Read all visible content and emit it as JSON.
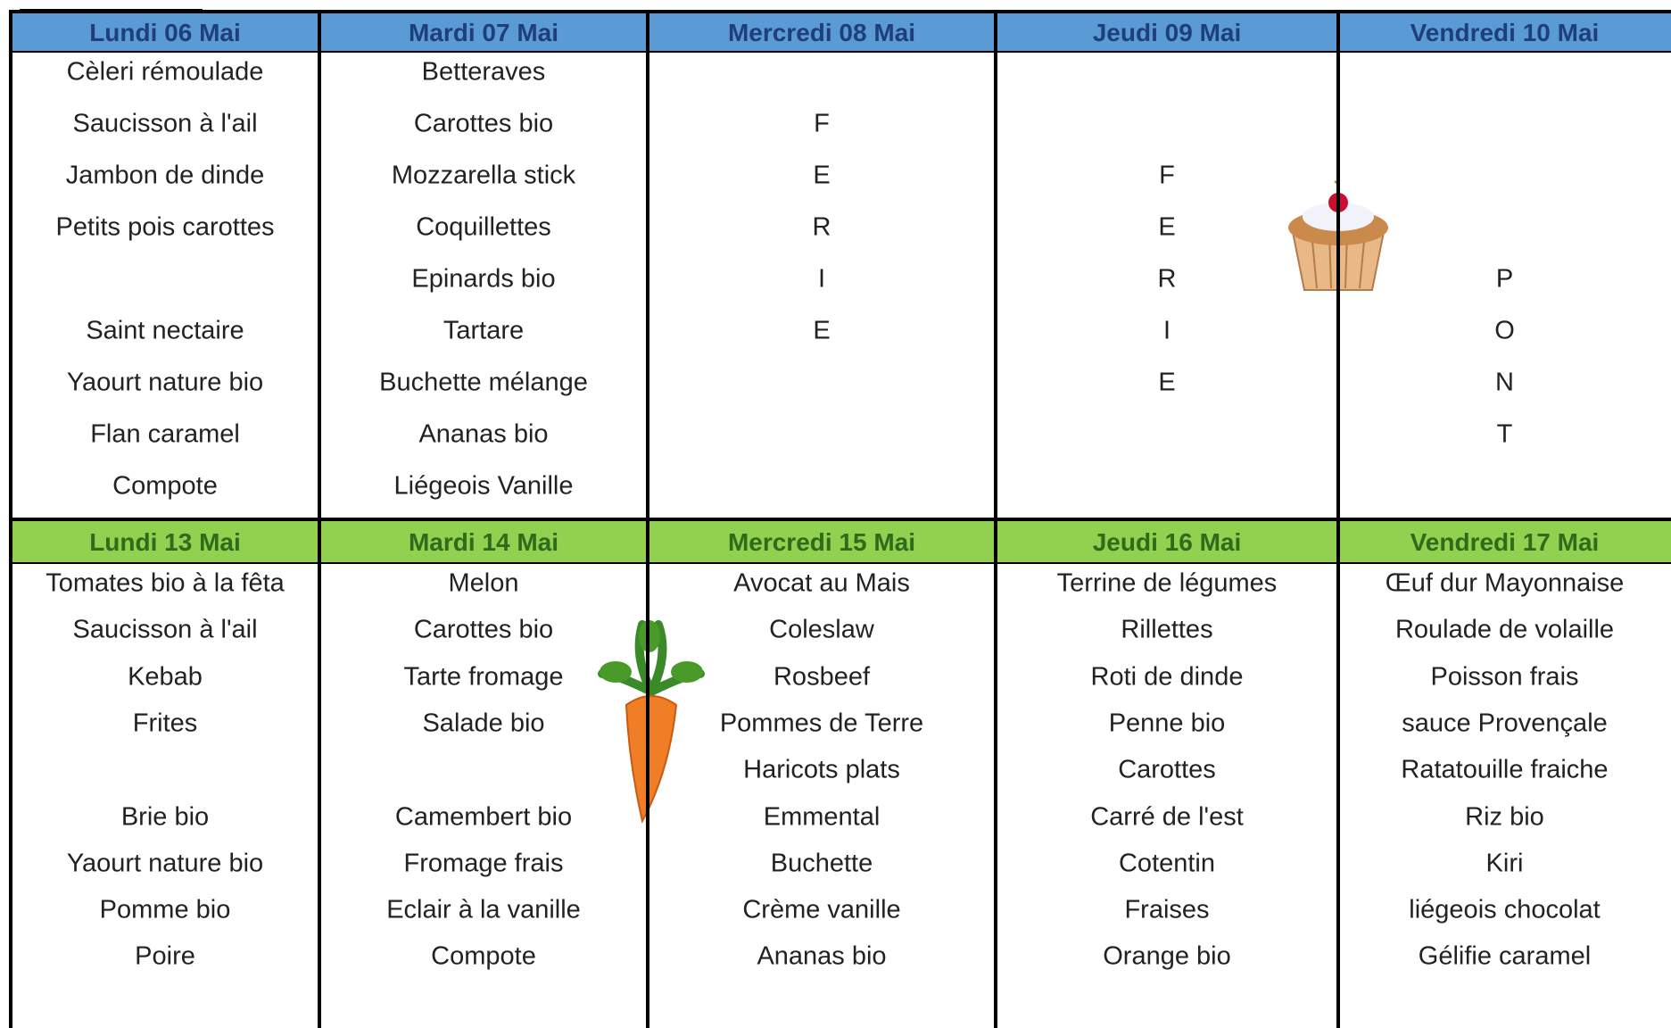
{
  "weeks": [
    {
      "headers": [
        "Lundi 06 Mai",
        "Mardi 07  Mai",
        "Mercredi 08 Mai",
        "Jeudi 09 Mai",
        "Vendredi 10 Mai"
      ],
      "rows": [
        [
          "Cèleri rémoulade",
          "Betteraves",
          null,
          null,
          null
        ],
        [
          "Saucisson à l'ail",
          "Carottes bio",
          "F",
          null,
          null
        ],
        [
          "Jambon de dinde",
          "Mozzarella stick",
          "E",
          "F",
          null
        ],
        [
          "Petits pois carottes",
          "Coquillettes",
          "R",
          "E",
          null
        ],
        [
          null,
          "Epinards bio",
          "I",
          "R",
          "P"
        ],
        [
          "Saint nectaire",
          "Tartare",
          "E",
          "I",
          "O"
        ],
        [
          "Yaourt nature bio",
          "Buchette mélange",
          null,
          "E",
          "N"
        ],
        [
          "Flan caramel",
          "Ananas bio",
          null,
          null,
          "T"
        ],
        [
          "Compote",
          "Liégeois Vanille",
          null,
          null,
          null
        ]
      ]
    },
    {
      "headers": [
        "Lundi 13 Mai",
        "Mardi 14 Mai",
        "Mercredi 15 Mai",
        "Jeudi 16 Mai",
        "Vendredi 17 Mai"
      ],
      "rows": [
        [
          "Tomates bio à la fêta",
          "Melon",
          "Avocat  au Mais",
          "Terrine de légumes",
          "Œuf dur Mayonnaise"
        ],
        [
          "Saucisson à l'ail",
          "Carottes bio",
          "Coleslaw",
          "Rillettes",
          "Roulade de volaille"
        ],
        [
          "Kebab",
          "Tarte fromage",
          "Rosbeef",
          "Roti de dinde",
          "Poisson frais"
        ],
        [
          "Frites",
          "Salade bio",
          "Pommes de Terre",
          "Penne bio",
          "sauce Provençale"
        ],
        [
          null,
          null,
          "Haricots plats",
          "Carottes",
          "Ratatouille fraiche"
        ],
        [
          "Brie bio",
          "Camembert bio",
          "Emmental",
          "Carré de l'est",
          "Riz bio"
        ],
        [
          "Yaourt nature bio",
          "Fromage frais",
          "Buchette",
          "Cotentin",
          "Kiri"
        ],
        [
          "Pomme bio",
          "Eclair à la vanille",
          "Crème vanille",
          "Fraises",
          "liégeois chocolat"
        ],
        [
          "Poire",
          "Compote",
          "Ananas bio",
          "Orange bio",
          "Gélifie caramel"
        ]
      ]
    }
  ]
}
